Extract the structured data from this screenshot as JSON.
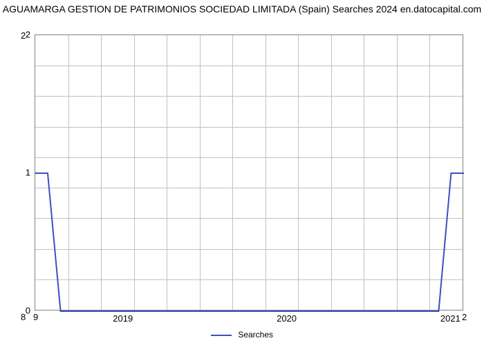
{
  "chart": {
    "type": "line",
    "title": "AGUAMARGA GESTION DE PATRIMONIOS SOCIEDAD LIMITADA (Spain) Searches 2024 en.datocapital.com",
    "title_fontsize": 14,
    "title_color": "#000000",
    "background_color": "#ffffff",
    "plot_border_color": "#808080",
    "grid_color": "#c0c0c0",
    "x_axis": {
      "ticks": [
        "2019",
        "2020",
        "2021"
      ],
      "tick_positions_pct": [
        20.6,
        58.8,
        97.0
      ],
      "grid_count": 13,
      "label_fontsize": 13
    },
    "y_axis": {
      "ticks": [
        "0",
        "1",
        "2"
      ],
      "tick_positions_pct": [
        100,
        50,
        0
      ],
      "grid_count": 9,
      "label_fontsize": 13,
      "ylim": [
        0,
        2
      ]
    },
    "corner_labels": {
      "top_left": "2",
      "bottom_left": "8",
      "bottom_left2": "9",
      "bottom_right": "2"
    },
    "series": {
      "name": "Searches",
      "color": "#3b4ec4",
      "line_width": 2,
      "data_points": [
        {
          "x_pct": 0,
          "y_val": 1
        },
        {
          "x_pct": 2.9,
          "y_val": 1
        },
        {
          "x_pct": 5.9,
          "y_val": 0
        },
        {
          "x_pct": 94.1,
          "y_val": 0
        },
        {
          "x_pct": 97.0,
          "y_val": 1
        },
        {
          "x_pct": 100,
          "y_val": 1
        }
      ]
    },
    "legend": {
      "label": "Searches",
      "fontsize": 12
    }
  }
}
